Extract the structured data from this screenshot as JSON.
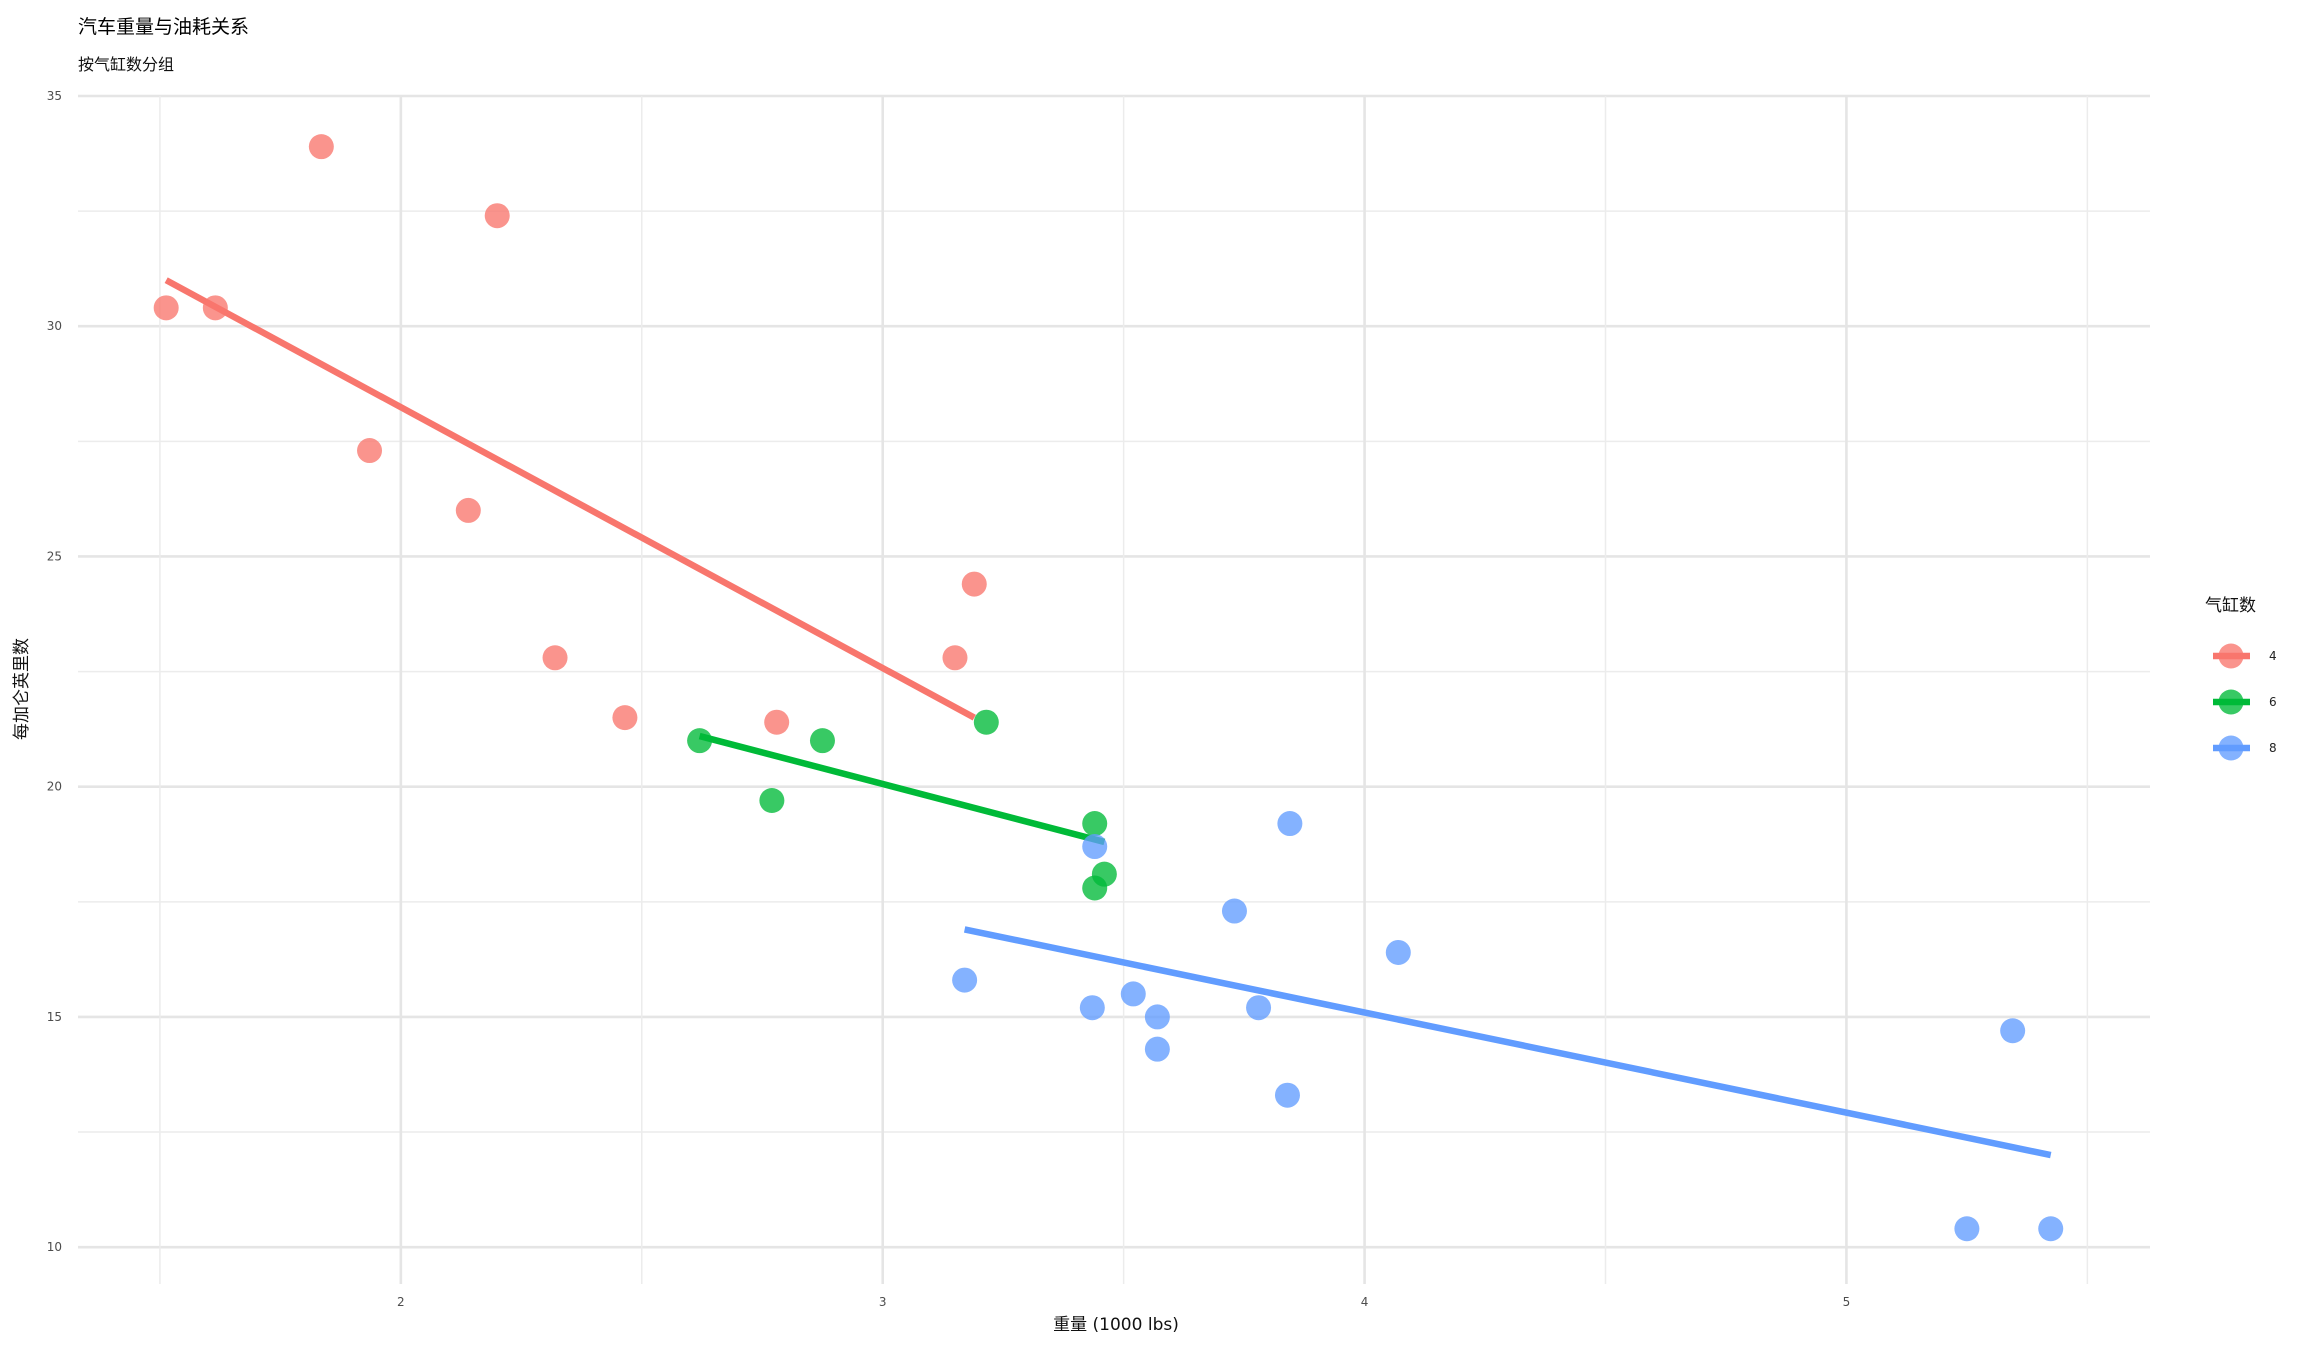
{
  "chart_data": {
    "type": "scatter",
    "title": "汽车重量与油耗关系",
    "subtitle": "按气缸数分组",
    "xlabel": "重量 (1000 lbs)",
    "ylabel": "每加仑英里数",
    "xlim": [
      1.33,
      5.63
    ],
    "ylim": [
      9.2,
      35
    ],
    "x_ticks": [
      2,
      3,
      4,
      5
    ],
    "y_ticks": [
      10,
      15,
      20,
      25,
      30,
      35
    ],
    "grid": true,
    "legend": {
      "title": "气缸数",
      "placement": "right"
    },
    "series": [
      {
        "name": "4",
        "color": "#F8766D",
        "points": [
          [
            1.513,
            30.4
          ],
          [
            1.615,
            30.4
          ],
          [
            1.835,
            33.9
          ],
          [
            1.935,
            27.3
          ],
          [
            2.14,
            26.0
          ],
          [
            2.2,
            32.4
          ],
          [
            2.32,
            22.8
          ],
          [
            2.465,
            21.5
          ],
          [
            2.78,
            21.4
          ],
          [
            3.15,
            22.8
          ],
          [
            3.19,
            24.4
          ]
        ],
        "trend": [
          [
            1.513,
            31.0
          ],
          [
            3.19,
            21.5
          ]
        ]
      },
      {
        "name": "6",
        "color": "#00BA38",
        "points": [
          [
            2.62,
            21.0
          ],
          [
            2.77,
            19.7
          ],
          [
            2.875,
            21.0
          ],
          [
            3.215,
            21.4
          ],
          [
            3.44,
            19.2
          ],
          [
            3.44,
            17.8
          ],
          [
            3.46,
            18.1
          ]
        ],
        "trend": [
          [
            2.62,
            21.1
          ],
          [
            3.46,
            18.8
          ]
        ]
      },
      {
        "name": "8",
        "color": "#619CFF",
        "points": [
          [
            3.17,
            15.8
          ],
          [
            3.435,
            15.2
          ],
          [
            3.44,
            18.7
          ],
          [
            3.52,
            15.5
          ],
          [
            3.57,
            15.0
          ],
          [
            3.57,
            14.3
          ],
          [
            3.73,
            17.3
          ],
          [
            3.78,
            15.2
          ],
          [
            3.84,
            13.3
          ],
          [
            3.845,
            19.2
          ],
          [
            4.07,
            16.4
          ],
          [
            5.25,
            10.4
          ],
          [
            5.345,
            14.7
          ],
          [
            5.424,
            10.4
          ]
        ],
        "trend": [
          [
            3.17,
            16.9
          ],
          [
            5.424,
            12.0
          ]
        ]
      }
    ]
  }
}
